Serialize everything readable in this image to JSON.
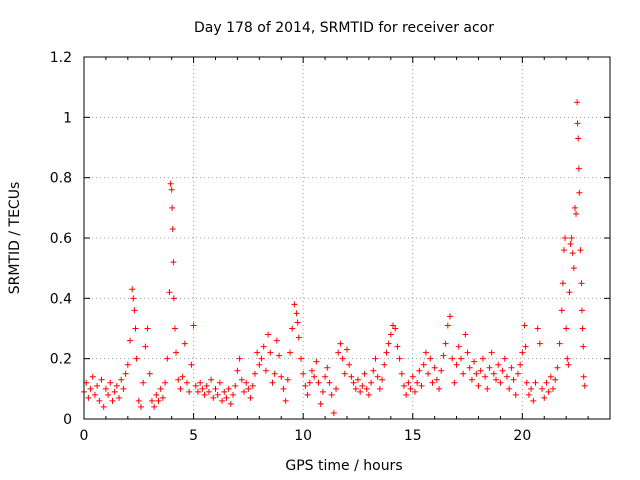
{
  "chart_data": {
    "type": "scatter",
    "title": "Day 178 of 2014, SRMTID for receiver acor",
    "xlabel": "GPS time / hours",
    "ylabel": "SRMTID / TECUs",
    "xlim": [
      0,
      24
    ],
    "ylim": [
      0,
      1.2
    ],
    "x_ticks": [
      0,
      5,
      10,
      15,
      20
    ],
    "x_tick_labels": [
      "0",
      "5",
      "10",
      "15",
      "20"
    ],
    "y_ticks": [
      0,
      0.2,
      0.4,
      0.6,
      0.8,
      1.0,
      1.2
    ],
    "y_tick_labels": [
      "0",
      "0.2",
      "0.4",
      "0.6",
      "0.8",
      "1",
      "1.2"
    ],
    "grid": true,
    "marker": "plus",
    "series": [
      {
        "name": "SRMTID",
        "color": "#ff0000",
        "points": [
          [
            0.0,
            0.09
          ],
          [
            0.1,
            0.12
          ],
          [
            0.2,
            0.07
          ],
          [
            0.3,
            0.1
          ],
          [
            0.4,
            0.14
          ],
          [
            0.5,
            0.08
          ],
          [
            0.6,
            0.11
          ],
          [
            0.7,
            0.06
          ],
          [
            0.8,
            0.13
          ],
          [
            0.9,
            0.04
          ],
          [
            1.0,
            0.1
          ],
          [
            1.1,
            0.08
          ],
          [
            1.2,
            0.12
          ],
          [
            1.3,
            0.06
          ],
          [
            1.4,
            0.09
          ],
          [
            1.5,
            0.11
          ],
          [
            1.6,
            0.07
          ],
          [
            1.7,
            0.13
          ],
          [
            1.8,
            0.1
          ],
          [
            1.9,
            0.15
          ],
          [
            2.0,
            0.18
          ],
          [
            2.1,
            0.26
          ],
          [
            2.2,
            0.43
          ],
          [
            2.25,
            0.4
          ],
          [
            2.3,
            0.36
          ],
          [
            2.35,
            0.3
          ],
          [
            2.4,
            0.2
          ],
          [
            2.5,
            0.06
          ],
          [
            2.6,
            0.04
          ],
          [
            2.7,
            0.12
          ],
          [
            2.8,
            0.24
          ],
          [
            2.9,
            0.3
          ],
          [
            3.0,
            0.15
          ],
          [
            3.1,
            0.06
          ],
          [
            3.2,
            0.04
          ],
          [
            3.3,
            0.08
          ],
          [
            3.4,
            0.06
          ],
          [
            3.5,
            0.1
          ],
          [
            3.6,
            0.07
          ],
          [
            3.7,
            0.12
          ],
          [
            3.8,
            0.2
          ],
          [
            3.9,
            0.42
          ],
          [
            3.95,
            0.78
          ],
          [
            4.0,
            0.76
          ],
          [
            4.02,
            0.7
          ],
          [
            4.05,
            0.63
          ],
          [
            4.08,
            0.52
          ],
          [
            4.1,
            0.4
          ],
          [
            4.15,
            0.3
          ],
          [
            4.2,
            0.22
          ],
          [
            4.3,
            0.13
          ],
          [
            4.4,
            0.1
          ],
          [
            4.5,
            0.14
          ],
          [
            4.6,
            0.25
          ],
          [
            4.7,
            0.12
          ],
          [
            4.8,
            0.09
          ],
          [
            4.9,
            0.18
          ],
          [
            5.0,
            0.31
          ],
          [
            5.1,
            0.11
          ],
          [
            5.2,
            0.09
          ],
          [
            5.3,
            0.12
          ],
          [
            5.4,
            0.1
          ],
          [
            5.5,
            0.08
          ],
          [
            5.6,
            0.11
          ],
          [
            5.7,
            0.09
          ],
          [
            5.8,
            0.13
          ],
          [
            5.9,
            0.07
          ],
          [
            6.0,
            0.1
          ],
          [
            6.1,
            0.08
          ],
          [
            6.2,
            0.12
          ],
          [
            6.3,
            0.06
          ],
          [
            6.4,
            0.09
          ],
          [
            6.5,
            0.07
          ],
          [
            6.6,
            0.1
          ],
          [
            6.7,
            0.05
          ],
          [
            6.8,
            0.08
          ],
          [
            6.9,
            0.11
          ],
          [
            7.0,
            0.16
          ],
          [
            7.1,
            0.2
          ],
          [
            7.2,
            0.13
          ],
          [
            7.3,
            0.09
          ],
          [
            7.4,
            0.12
          ],
          [
            7.5,
            0.1
          ],
          [
            7.6,
            0.07
          ],
          [
            7.7,
            0.11
          ],
          [
            7.8,
            0.15
          ],
          [
            7.9,
            0.22
          ],
          [
            8.0,
            0.18
          ],
          [
            8.1,
            0.2
          ],
          [
            8.2,
            0.24
          ],
          [
            8.3,
            0.16
          ],
          [
            8.4,
            0.28
          ],
          [
            8.5,
            0.22
          ],
          [
            8.6,
            0.12
          ],
          [
            8.7,
            0.15
          ],
          [
            8.8,
            0.26
          ],
          [
            8.9,
            0.21
          ],
          [
            9.0,
            0.14
          ],
          [
            9.1,
            0.1
          ],
          [
            9.2,
            0.06
          ],
          [
            9.3,
            0.13
          ],
          [
            9.4,
            0.22
          ],
          [
            9.5,
            0.3
          ],
          [
            9.6,
            0.38
          ],
          [
            9.7,
            0.35
          ],
          [
            9.75,
            0.32
          ],
          [
            9.8,
            0.27
          ],
          [
            9.9,
            0.2
          ],
          [
            10.0,
            0.15
          ],
          [
            10.1,
            0.11
          ],
          [
            10.2,
            0.08
          ],
          [
            10.3,
            0.12
          ],
          [
            10.4,
            0.16
          ],
          [
            10.5,
            0.14
          ],
          [
            10.6,
            0.19
          ],
          [
            10.7,
            0.12
          ],
          [
            10.8,
            0.05
          ],
          [
            10.9,
            0.09
          ],
          [
            11.0,
            0.14
          ],
          [
            11.1,
            0.17
          ],
          [
            11.2,
            0.12
          ],
          [
            11.3,
            0.08
          ],
          [
            11.4,
            0.02
          ],
          [
            11.5,
            0.1
          ],
          [
            11.6,
            0.22
          ],
          [
            11.7,
            0.25
          ],
          [
            11.8,
            0.2
          ],
          [
            11.9,
            0.15
          ],
          [
            12.0,
            0.23
          ],
          [
            12.1,
            0.18
          ],
          [
            12.2,
            0.14
          ],
          [
            12.3,
            0.12
          ],
          [
            12.4,
            0.1
          ],
          [
            12.5,
            0.13
          ],
          [
            12.6,
            0.09
          ],
          [
            12.7,
            0.11
          ],
          [
            12.8,
            0.15
          ],
          [
            12.9,
            0.1
          ],
          [
            13.0,
            0.08
          ],
          [
            13.1,
            0.12
          ],
          [
            13.2,
            0.16
          ],
          [
            13.3,
            0.2
          ],
          [
            13.4,
            0.14
          ],
          [
            13.5,
            0.1
          ],
          [
            13.6,
            0.13
          ],
          [
            13.7,
            0.18
          ],
          [
            13.8,
            0.22
          ],
          [
            13.9,
            0.25
          ],
          [
            14.0,
            0.28
          ],
          [
            14.1,
            0.31
          ],
          [
            14.2,
            0.3
          ],
          [
            14.3,
            0.24
          ],
          [
            14.4,
            0.2
          ],
          [
            14.5,
            0.15
          ],
          [
            14.6,
            0.11
          ],
          [
            14.7,
            0.08
          ],
          [
            14.8,
            0.12
          ],
          [
            14.9,
            0.1
          ],
          [
            15.0,
            0.14
          ],
          [
            15.1,
            0.09
          ],
          [
            15.2,
            0.12
          ],
          [
            15.3,
            0.16
          ],
          [
            15.4,
            0.11
          ],
          [
            15.5,
            0.18
          ],
          [
            15.6,
            0.22
          ],
          [
            15.7,
            0.15
          ],
          [
            15.8,
            0.2
          ],
          [
            15.9,
            0.12
          ],
          [
            16.0,
            0.17
          ],
          [
            16.1,
            0.13
          ],
          [
            16.2,
            0.1
          ],
          [
            16.3,
            0.16
          ],
          [
            16.4,
            0.21
          ],
          [
            16.5,
            0.25
          ],
          [
            16.6,
            0.31
          ],
          [
            16.7,
            0.34
          ],
          [
            16.8,
            0.2
          ],
          [
            16.9,
            0.12
          ],
          [
            17.0,
            0.18
          ],
          [
            17.1,
            0.24
          ],
          [
            17.2,
            0.2
          ],
          [
            17.3,
            0.15
          ],
          [
            17.4,
            0.28
          ],
          [
            17.5,
            0.22
          ],
          [
            17.6,
            0.17
          ],
          [
            17.7,
            0.13
          ],
          [
            17.8,
            0.19
          ],
          [
            17.9,
            0.15
          ],
          [
            18.0,
            0.11
          ],
          [
            18.1,
            0.16
          ],
          [
            18.2,
            0.2
          ],
          [
            18.3,
            0.14
          ],
          [
            18.4,
            0.1
          ],
          [
            18.5,
            0.17
          ],
          [
            18.6,
            0.22
          ],
          [
            18.7,
            0.15
          ],
          [
            18.8,
            0.13
          ],
          [
            18.9,
            0.18
          ],
          [
            19.0,
            0.12
          ],
          [
            19.1,
            0.16
          ],
          [
            19.2,
            0.2
          ],
          [
            19.3,
            0.14
          ],
          [
            19.4,
            0.1
          ],
          [
            19.5,
            0.17
          ],
          [
            19.6,
            0.13
          ],
          [
            19.7,
            0.08
          ],
          [
            19.8,
            0.15
          ],
          [
            19.9,
            0.18
          ],
          [
            20.0,
            0.22
          ],
          [
            20.1,
            0.31
          ],
          [
            20.15,
            0.24
          ],
          [
            20.2,
            0.12
          ],
          [
            20.3,
            0.08
          ],
          [
            20.4,
            0.1
          ],
          [
            20.5,
            0.06
          ],
          [
            20.6,
            0.12
          ],
          [
            20.7,
            0.3
          ],
          [
            20.8,
            0.25
          ],
          [
            20.9,
            0.1
          ],
          [
            21.0,
            0.07
          ],
          [
            21.1,
            0.12
          ],
          [
            21.2,
            0.09
          ],
          [
            21.3,
            0.14
          ],
          [
            21.4,
            0.1
          ],
          [
            21.5,
            0.13
          ],
          [
            21.6,
            0.17
          ],
          [
            21.7,
            0.25
          ],
          [
            21.8,
            0.36
          ],
          [
            21.85,
            0.45
          ],
          [
            21.9,
            0.56
          ],
          [
            21.95,
            0.6
          ],
          [
            22.0,
            0.3
          ],
          [
            22.05,
            0.2
          ],
          [
            22.1,
            0.18
          ],
          [
            22.15,
            0.42
          ],
          [
            22.2,
            0.58
          ],
          [
            22.25,
            0.6
          ],
          [
            22.3,
            0.55
          ],
          [
            22.35,
            0.5
          ],
          [
            22.4,
            0.7
          ],
          [
            22.45,
            0.68
          ],
          [
            22.5,
            1.05
          ],
          [
            22.52,
            0.98
          ],
          [
            22.55,
            0.93
          ],
          [
            22.58,
            0.83
          ],
          [
            22.6,
            0.75
          ],
          [
            22.65,
            0.56
          ],
          [
            22.7,
            0.45
          ],
          [
            22.72,
            0.36
          ],
          [
            22.75,
            0.3
          ],
          [
            22.78,
            0.24
          ],
          [
            22.8,
            0.14
          ],
          [
            22.85,
            0.11
          ]
        ]
      }
    ]
  }
}
